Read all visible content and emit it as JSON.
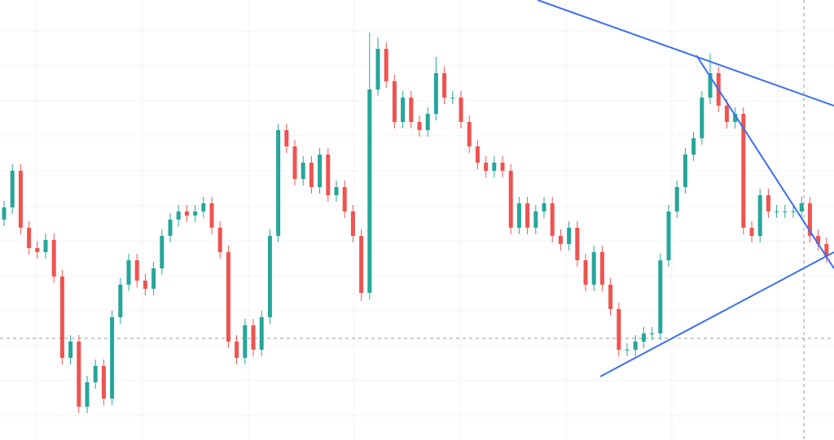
{
  "chart_data": {
    "type": "candlestick",
    "up_color": "#26a69a",
    "down_color": "#ef5350",
    "ylim": [
      0,
      541
    ],
    "open": [
      271,
      286,
      331,
      261,
      236,
      231,
      246,
      201,
      101,
      121,
      41,
      71,
      91,
      51,
      151,
      191,
      221,
      196,
      186,
      211,
      251,
      271,
      281,
      276,
      281,
      291,
      261,
      231,
      121,
      101,
      141,
      111,
      151,
      251,
      381,
      361,
      321,
      341,
      311,
      351,
      301,
      311,
      281,
      251,
      181,
      431,
      481,
      441,
      391,
      421,
      391,
      381,
      401,
      451,
      421,
      421,
      391,
      361,
      341,
      331,
      341,
      331,
      261,
      291,
      261,
      281,
      291,
      251,
      241,
      261,
      221,
      191,
      231,
      191,
      161,
      111,
      111,
      121,
      131,
      131,
      221,
      281,
      311,
      351,
      371,
      421,
      451,
      411,
      391,
      401,
      261,
      251,
      301,
      281,
      281,
      281,
      281,
      291,
      251,
      241
    ],
    "high": [
      294,
      339,
      339,
      269,
      244,
      254,
      254,
      209,
      129,
      129,
      79,
      99,
      99,
      159,
      199,
      229,
      229,
      204,
      219,
      259,
      279,
      289,
      289,
      289,
      299,
      299,
      269,
      239,
      129,
      149,
      149,
      159,
      259,
      389,
      389,
      369,
      349,
      349,
      359,
      359,
      319,
      319,
      289,
      259,
      501,
      495,
      489,
      449,
      429,
      429,
      399,
      409,
      471,
      459,
      429,
      429,
      399,
      369,
      349,
      349,
      349,
      339,
      299,
      299,
      289,
      299,
      299,
      259,
      269,
      269,
      229,
      239,
      239,
      199,
      169,
      119,
      129,
      139,
      139,
      229,
      289,
      319,
      359,
      379,
      429,
      475,
      459,
      419,
      409,
      409,
      269,
      309,
      309,
      289,
      289,
      289,
      299,
      299,
      259,
      249
    ],
    "low": [
      263,
      278,
      253,
      228,
      223,
      223,
      193,
      93,
      93,
      33,
      33,
      63,
      43,
      43,
      143,
      183,
      188,
      178,
      178,
      203,
      243,
      263,
      268,
      268,
      273,
      253,
      223,
      113,
      93,
      93,
      103,
      103,
      143,
      243,
      353,
      313,
      313,
      303,
      303,
      293,
      293,
      273,
      243,
      171,
      173,
      423,
      433,
      383,
      383,
      383,
      373,
      373,
      393,
      413,
      413,
      383,
      353,
      333,
      323,
      323,
      323,
      253,
      253,
      253,
      253,
      273,
      243,
      233,
      233,
      213,
      183,
      183,
      183,
      153,
      103,
      103,
      103,
      113,
      123,
      123,
      213,
      273,
      303,
      343,
      363,
      413,
      403,
      383,
      383,
      253,
      243,
      243,
      273,
      273,
      273,
      273,
      273,
      243,
      233,
      218
    ],
    "close": [
      286,
      331,
      261,
      236,
      231,
      246,
      201,
      101,
      121,
      41,
      71,
      91,
      51,
      151,
      191,
      221,
      196,
      186,
      211,
      251,
      271,
      281,
      276,
      281,
      291,
      261,
      231,
      121,
      101,
      141,
      111,
      151,
      251,
      381,
      361,
      321,
      341,
      311,
      351,
      301,
      311,
      281,
      251,
      181,
      431,
      481,
      441,
      391,
      421,
      391,
      381,
      401,
      451,
      421,
      421,
      391,
      361,
      341,
      331,
      341,
      331,
      261,
      291,
      261,
      281,
      291,
      251,
      241,
      261,
      221,
      191,
      231,
      191,
      161,
      111,
      111,
      121,
      131,
      131,
      221,
      281,
      311,
      351,
      371,
      421,
      451,
      411,
      391,
      401,
      261,
      251,
      301,
      281,
      281,
      281,
      281,
      291,
      251,
      241,
      226
    ]
  }
}
